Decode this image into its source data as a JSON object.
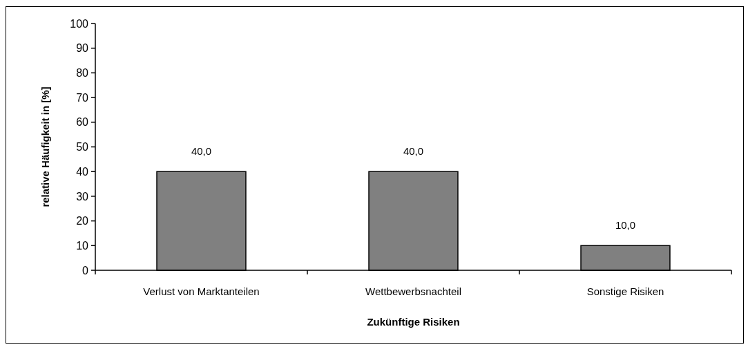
{
  "chart_data": {
    "type": "bar",
    "xlabel": "Zukünftige Risiken",
    "ylabel": "relative Häufigkeit in [%]",
    "categories": [
      "Verlust von Marktanteilen",
      "Wettbewerbsnachteil",
      "Sonstige Risiken"
    ],
    "values": [
      40,
      40,
      10
    ],
    "value_labels": [
      "40,0",
      "40,0",
      "10,0"
    ],
    "color": "#808080",
    "ylim": [
      0,
      100
    ],
    "yticks": [
      0,
      10,
      20,
      30,
      40,
      50,
      60,
      70,
      80,
      90,
      100
    ]
  }
}
